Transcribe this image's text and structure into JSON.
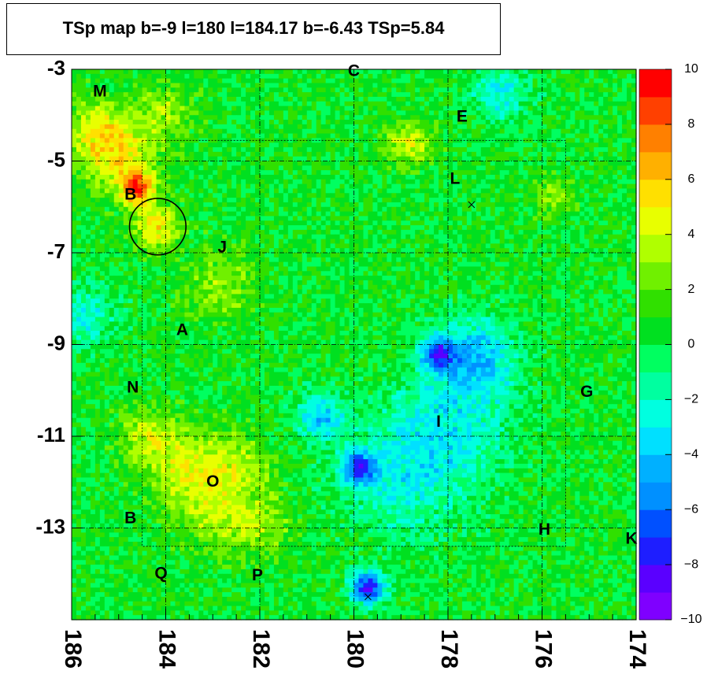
{
  "chart_data": {
    "type": "heatmap",
    "title": "TSp map b=-9 l=180 l=184.17 b=-6.43 TSp=5.84",
    "xlabel": "",
    "ylabel": "",
    "xlim": [
      186,
      174
    ],
    "ylim": [
      -15,
      -3
    ],
    "x_ticks": [
      "186",
      "184",
      "182",
      "180",
      "178",
      "176",
      "174"
    ],
    "y_ticks": [
      "-3",
      "-5",
      "-7",
      "-9",
      "-11",
      "-13"
    ],
    "grid": true,
    "colorbar": {
      "range": [
        -10,
        10
      ],
      "ticks": [
        "10",
        "8",
        "6",
        "4",
        "2",
        "0",
        "−2",
        "−4",
        "−6",
        "−8",
        "−10"
      ],
      "colors": [
        "#7f00ff",
        "#5a00ff",
        "#1e1eff",
        "#0050ff",
        "#0090ff",
        "#00b0ff",
        "#00e0ff",
        "#00ffe0",
        "#00ffa0",
        "#00ff60",
        "#00e020",
        "#30e000",
        "#70f000",
        "#b0ff00",
        "#e8ff00",
        "#ffe000",
        "#ffb000",
        "#ff8000",
        "#ff4000",
        "#ff0000"
      ]
    },
    "background_value": 0.5,
    "hotspots": [
      {
        "l": 184.6,
        "b": -5.6,
        "v": 7.8,
        "r": 0.25
      },
      {
        "l": 185.0,
        "b": -4.9,
        "v": 4.5,
        "r": 0.55
      },
      {
        "l": 185.5,
        "b": -4.3,
        "v": 3.5,
        "r": 0.5
      },
      {
        "l": 184.2,
        "b": -6.45,
        "v": 5.2,
        "r": 0.35
      },
      {
        "l": 184.0,
        "b": -3.9,
        "v": 3.0,
        "r": 0.45
      },
      {
        "l": 178.8,
        "b": -4.6,
        "v": 4.5,
        "r": 0.35
      },
      {
        "l": 182.8,
        "b": -7.7,
        "v": 3.0,
        "r": 0.55
      },
      {
        "l": 183.5,
        "b": -11.7,
        "v": 4.0,
        "r": 0.6
      },
      {
        "l": 182.4,
        "b": -11.6,
        "v": 3.0,
        "r": 0.45
      },
      {
        "l": 183.0,
        "b": -12.7,
        "v": 3.0,
        "r": 0.55
      },
      {
        "l": 184.4,
        "b": -11.0,
        "v": 3.5,
        "r": 0.45
      },
      {
        "l": 182.0,
        "b": -12.9,
        "v": 3.0,
        "r": 0.5
      },
      {
        "l": 175.7,
        "b": -5.8,
        "v": 3.0,
        "r": 0.3
      },
      {
        "l": 178.2,
        "b": -9.2,
        "v": -6.0,
        "r": 0.25
      },
      {
        "l": 177.4,
        "b": -9.3,
        "v": -4.0,
        "r": 0.6
      },
      {
        "l": 179.9,
        "b": -11.7,
        "v": -7.0,
        "r": 0.25
      },
      {
        "l": 179.7,
        "b": -14.3,
        "v": -8.0,
        "r": 0.25
      },
      {
        "l": 180.7,
        "b": -10.6,
        "v": -4.0,
        "r": 0.35
      },
      {
        "l": 178.0,
        "b": -10.8,
        "v": -2.5,
        "r": 0.9
      },
      {
        "l": 179.0,
        "b": -12.0,
        "v": -2.0,
        "r": 0.9
      },
      {
        "l": 176.9,
        "b": -3.5,
        "v": -3.0,
        "r": 0.4
      },
      {
        "l": 185.7,
        "b": -8.4,
        "v": -2.5,
        "r": 0.45
      }
    ],
    "circle": {
      "l": 184.17,
      "b": -6.43,
      "r": 0.5
    },
    "crosses": [
      {
        "l": 177.5,
        "b": -5.95
      },
      {
        "l": 179.7,
        "b": -14.5
      }
    ],
    "labels": [
      {
        "text": "M",
        "l": 185.4,
        "b": -3.5
      },
      {
        "text": "C",
        "l": 180.0,
        "b": -3.05
      },
      {
        "text": "E",
        "l": 177.7,
        "b": -4.05
      },
      {
        "text": "L",
        "l": 177.85,
        "b": -5.4
      },
      {
        "text": "B",
        "l": 184.75,
        "b": -5.75
      },
      {
        "text": "J",
        "l": 182.8,
        "b": -6.9
      },
      {
        "text": "A",
        "l": 183.65,
        "b": -8.7
      },
      {
        "text": "N",
        "l": 184.7,
        "b": -9.95
      },
      {
        "text": "G",
        "l": 175.05,
        "b": -10.05
      },
      {
        "text": "I",
        "l": 178.2,
        "b": -10.7
      },
      {
        "text": "O",
        "l": 183.0,
        "b": -12.0
      },
      {
        "text": "B",
        "l": 184.75,
        "b": -12.8
      },
      {
        "text": "H",
        "l": 175.95,
        "b": -13.05
      },
      {
        "text": "K",
        "l": 174.1,
        "b": -13.25
      },
      {
        "text": "Q",
        "l": 184.1,
        "b": -14.0
      },
      {
        "text": "P",
        "l": 182.05,
        "b": -14.05
      }
    ]
  }
}
